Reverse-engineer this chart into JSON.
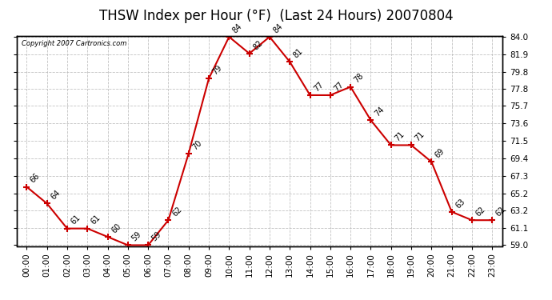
{
  "title": "THSW Index per Hour (°F)  (Last 24 Hours) 20070804",
  "copyright": "Copyright 2007 Cartronics.com",
  "hours": [
    "00:00",
    "01:00",
    "02:00",
    "03:00",
    "04:00",
    "05:00",
    "06:00",
    "07:00",
    "08:00",
    "09:00",
    "10:00",
    "11:00",
    "12:00",
    "13:00",
    "14:00",
    "15:00",
    "16:00",
    "17:00",
    "18:00",
    "19:00",
    "20:00",
    "21:00",
    "22:00",
    "23:00"
  ],
  "values": [
    66,
    64,
    61,
    61,
    60,
    59,
    59,
    62,
    70,
    79,
    84,
    82,
    84,
    81,
    77,
    77,
    78,
    74,
    71,
    71,
    69,
    63,
    62,
    62
  ],
  "line_color": "#cc0000",
  "marker_color": "#cc0000",
  "bg_color": "#ffffff",
  "grid_color": "#bbbbbb",
  "ylim_min": 59.0,
  "ylim_max": 84.0,
  "yticks": [
    59.0,
    61.1,
    63.2,
    65.2,
    67.3,
    69.4,
    71.5,
    73.6,
    75.7,
    77.8,
    79.8,
    81.9,
    84.0
  ],
  "title_fontsize": 12,
  "label_fontsize": 7.5,
  "annotation_fontsize": 7,
  "tick_label_fontsize": 7.5
}
